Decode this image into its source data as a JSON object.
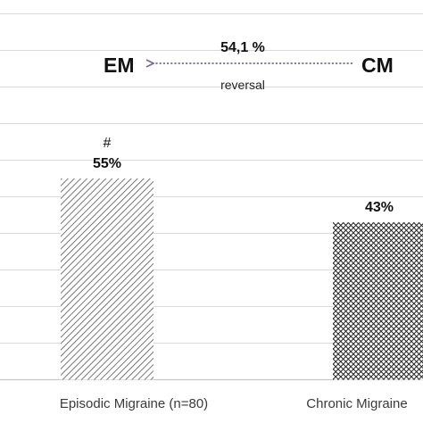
{
  "chart_data": {
    "type": "bar",
    "categories": [
      "Episodic Migraine (n=80)",
      "Chronic Migraine"
    ],
    "values": [
      55,
      43
    ],
    "data_labels": [
      "55%",
      "43%"
    ],
    "significance_marker": "#",
    "ylim": [
      0,
      100
    ],
    "grid": true,
    "legend": "none",
    "annotation": {
      "left": "EM",
      "right": "CM",
      "percent": "54,1 %",
      "caption": "reversal",
      "arrow_direction": "right-to-left"
    },
    "colors": {
      "bar_fill_hatch": "#333333",
      "arrow": "#7a6a9a",
      "grid": "#d9d9d9"
    }
  }
}
